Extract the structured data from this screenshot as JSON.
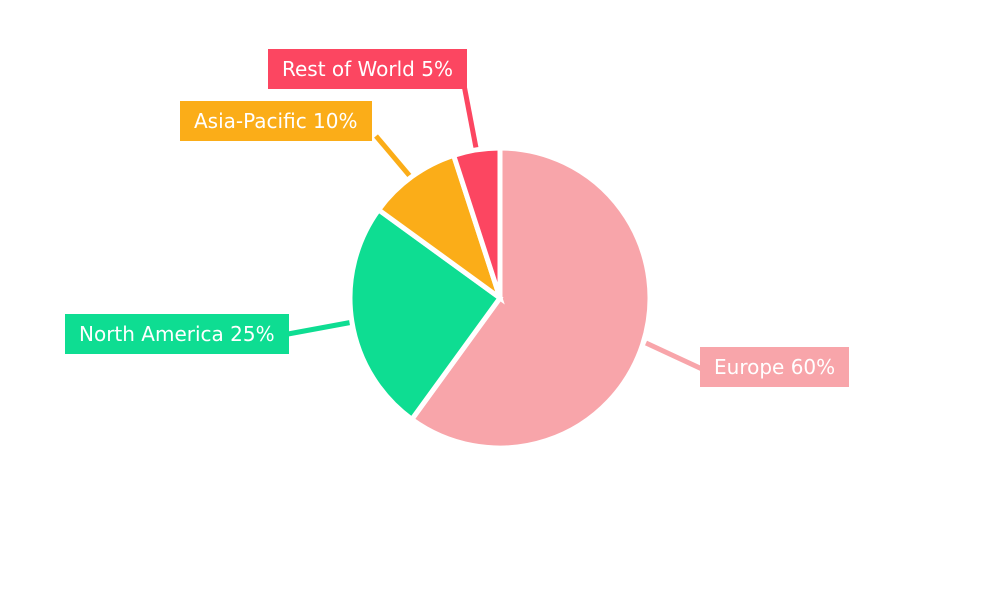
{
  "page": {
    "background_color": "#ffffff",
    "label_text_color": "#ffffff"
  },
  "chart_data": {
    "type": "pie",
    "title": "",
    "unit": "%",
    "direction": "clockwise",
    "start_angle": "12 o'clock",
    "legend_position": "callout labels with leader lines",
    "categories": [
      "Europe",
      "North America",
      "Asia-Pacific",
      "Rest of World"
    ],
    "values": [
      60,
      25,
      10,
      5
    ],
    "slices": [
      {
        "name": "Europe",
        "value": 60,
        "label": "Europe 60%",
        "color": "#F8A5AA"
      },
      {
        "name": "North America",
        "value": 25,
        "label": "North America 25%",
        "color": "#0EDD92"
      },
      {
        "name": "Asia-Pacific",
        "value": 10,
        "label": "Asia-Pacific 10%",
        "color": "#FBAD18"
      },
      {
        "name": "Rest of World",
        "value": 5,
        "label": "Rest of World 5%",
        "color": "#FC4661"
      }
    ]
  }
}
